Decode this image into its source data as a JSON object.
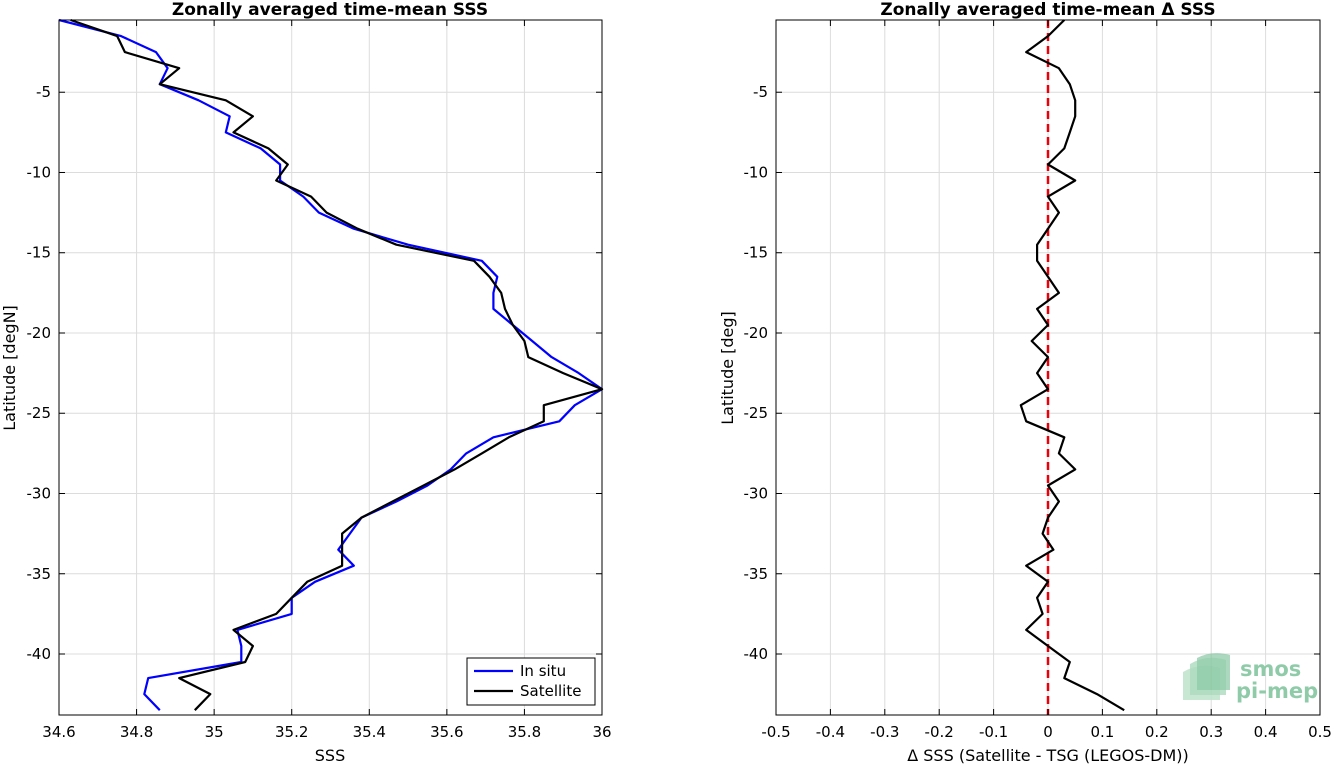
{
  "chart_data": [
    {
      "type": "line",
      "title": "Zonally averaged time-mean SSS",
      "xlabel": "SSS",
      "ylabel": "Latitude [degN]",
      "xlim": [
        34.6,
        36.0
      ],
      "ylim": [
        -43.8,
        -0.5
      ],
      "xticks": [
        "34.6",
        "34.8",
        "35",
        "35.2",
        "35.4",
        "35.6",
        "35.8",
        "36"
      ],
      "xtick_values": [
        34.6,
        34.8,
        35.0,
        35.2,
        35.4,
        35.6,
        35.8,
        36.0
      ],
      "yticks": [
        "-5",
        "-10",
        "-15",
        "-20",
        "-25",
        "-30",
        "-35",
        "-40"
      ],
      "ytick_values": [
        -5,
        -10,
        -15,
        -20,
        -25,
        -30,
        -35,
        -40
      ],
      "grid": true,
      "legend_position": "bottom-right",
      "series": [
        {
          "name": "In situ",
          "color": "#0000ff",
          "points": [
            [
              34.6,
              -0.5
            ],
            [
              34.76,
              -1.5
            ],
            [
              34.85,
              -2.5
            ],
            [
              34.88,
              -3.5
            ],
            [
              34.86,
              -4.5
            ],
            [
              34.96,
              -5.5
            ],
            [
              35.04,
              -6.5
            ],
            [
              35.03,
              -7.5
            ],
            [
              35.12,
              -8.5
            ],
            [
              35.17,
              -9.5
            ],
            [
              35.17,
              -10.5
            ],
            [
              35.23,
              -11.5
            ],
            [
              35.27,
              -12.5
            ],
            [
              35.36,
              -13.5
            ],
            [
              35.5,
              -14.5
            ],
            [
              35.69,
              -15.5
            ],
            [
              35.73,
              -16.5
            ],
            [
              35.72,
              -17.5
            ],
            [
              35.72,
              -18.5
            ],
            [
              35.77,
              -19.5
            ],
            [
              35.82,
              -20.5
            ],
            [
              35.87,
              -21.5
            ],
            [
              35.94,
              -22.5
            ],
            [
              36.0,
              -23.5
            ],
            [
              35.93,
              -24.5
            ],
            [
              35.89,
              -25.5
            ],
            [
              35.72,
              -26.5
            ],
            [
              35.65,
              -27.5
            ],
            [
              35.61,
              -28.5
            ],
            [
              35.55,
              -29.5
            ],
            [
              35.47,
              -30.5
            ],
            [
              35.38,
              -31.5
            ],
            [
              35.35,
              -32.5
            ],
            [
              35.32,
              -33.5
            ],
            [
              35.36,
              -34.5
            ],
            [
              35.26,
              -35.5
            ],
            [
              35.2,
              -36.5
            ],
            [
              35.2,
              -37.5
            ],
            [
              35.06,
              -38.5
            ],
            [
              35.07,
              -39.5
            ],
            [
              35.07,
              -40.5
            ],
            [
              34.83,
              -41.5
            ],
            [
              34.82,
              -42.5
            ],
            [
              34.86,
              -43.5
            ]
          ]
        },
        {
          "name": "Satellite",
          "color": "#000000",
          "points": [
            [
              34.63,
              -0.5
            ],
            [
              34.75,
              -1.5
            ],
            [
              34.77,
              -2.5
            ],
            [
              34.91,
              -3.5
            ],
            [
              34.86,
              -4.5
            ],
            [
              35.03,
              -5.5
            ],
            [
              35.1,
              -6.5
            ],
            [
              35.05,
              -7.5
            ],
            [
              35.14,
              -8.5
            ],
            [
              35.19,
              -9.5
            ],
            [
              35.16,
              -10.5
            ],
            [
              35.25,
              -11.5
            ],
            [
              35.29,
              -12.5
            ],
            [
              35.37,
              -13.5
            ],
            [
              35.47,
              -14.5
            ],
            [
              35.67,
              -15.5
            ],
            [
              35.71,
              -16.5
            ],
            [
              35.74,
              -17.5
            ],
            [
              35.75,
              -18.5
            ],
            [
              35.77,
              -19.5
            ],
            [
              35.8,
              -20.5
            ],
            [
              35.81,
              -21.5
            ],
            [
              35.9,
              -22.5
            ],
            [
              36.0,
              -23.5
            ],
            [
              35.85,
              -24.5
            ],
            [
              35.85,
              -25.5
            ],
            [
              35.76,
              -26.5
            ],
            [
              35.69,
              -27.5
            ],
            [
              35.62,
              -28.5
            ],
            [
              35.54,
              -29.5
            ],
            [
              35.46,
              -30.5
            ],
            [
              35.38,
              -31.5
            ],
            [
              35.33,
              -32.5
            ],
            [
              35.33,
              -33.5
            ],
            [
              35.33,
              -34.5
            ],
            [
              35.24,
              -35.5
            ],
            [
              35.2,
              -36.5
            ],
            [
              35.16,
              -37.5
            ],
            [
              35.05,
              -38.5
            ],
            [
              35.1,
              -39.5
            ],
            [
              35.08,
              -40.5
            ],
            [
              34.91,
              -41.5
            ],
            [
              34.99,
              -42.5
            ],
            [
              34.95,
              -43.5
            ]
          ]
        }
      ]
    },
    {
      "type": "line",
      "title": "Zonally averaged time-mean Δ SSS",
      "xlabel": "Δ SSS (Satellite - TSG (LEGOS-DM))",
      "ylabel": "Latitude [deg]",
      "xlim": [
        -0.5,
        0.5
      ],
      "ylim": [
        -43.8,
        -0.5
      ],
      "xticks": [
        "-0.5",
        "-0.4",
        "-0.3",
        "-0.2",
        "-0.1",
        "0",
        "0.1",
        "0.2",
        "0.3",
        "0.4",
        "0.5"
      ],
      "xtick_values": [
        -0.5,
        -0.4,
        -0.3,
        -0.2,
        -0.1,
        0,
        0.1,
        0.2,
        0.3,
        0.4,
        0.5
      ],
      "yticks": [
        "-5",
        "-10",
        "-15",
        "-20",
        "-25",
        "-30",
        "-35",
        "-40"
      ],
      "ytick_values": [
        -5,
        -10,
        -15,
        -20,
        -25,
        -30,
        -35,
        -40
      ],
      "grid": true,
      "zero_line": {
        "x": 0,
        "color": "#e8000b",
        "style": "dashed"
      },
      "series": [
        {
          "color": "#000000",
          "points": [
            [
              0.03,
              -0.5
            ],
            [
              0.0,
              -1.5
            ],
            [
              -0.04,
              -2.5
            ],
            [
              0.02,
              -3.5
            ],
            [
              0.04,
              -4.5
            ],
            [
              0.05,
              -5.5
            ],
            [
              0.05,
              -6.5
            ],
            [
              0.04,
              -7.5
            ],
            [
              0.03,
              -8.5
            ],
            [
              0.0,
              -9.5
            ],
            [
              0.05,
              -10.5
            ],
            [
              0.0,
              -11.5
            ],
            [
              0.02,
              -12.5
            ],
            [
              0.0,
              -13.5
            ],
            [
              -0.02,
              -14.5
            ],
            [
              -0.02,
              -15.5
            ],
            [
              0.0,
              -16.5
            ],
            [
              0.02,
              -17.5
            ],
            [
              -0.02,
              -18.5
            ],
            [
              0.0,
              -19.5
            ],
            [
              -0.03,
              -20.5
            ],
            [
              0.0,
              -21.5
            ],
            [
              -0.02,
              -22.5
            ],
            [
              0.0,
              -23.5
            ],
            [
              -0.05,
              -24.5
            ],
            [
              -0.04,
              -25.5
            ],
            [
              0.03,
              -26.5
            ],
            [
              0.02,
              -27.5
            ],
            [
              0.05,
              -28.5
            ],
            [
              0.0,
              -29.5
            ],
            [
              0.02,
              -30.5
            ],
            [
              0.0,
              -31.5
            ],
            [
              -0.01,
              -32.5
            ],
            [
              0.01,
              -33.5
            ],
            [
              -0.04,
              -34.5
            ],
            [
              0.0,
              -35.5
            ],
            [
              -0.02,
              -36.5
            ],
            [
              -0.01,
              -37.5
            ],
            [
              -0.04,
              -38.5
            ],
            [
              0.0,
              -39.5
            ],
            [
              0.04,
              -40.5
            ],
            [
              0.03,
              -41.5
            ],
            [
              0.09,
              -42.5
            ],
            [
              0.14,
              -43.5
            ]
          ]
        }
      ]
    }
  ],
  "logo": {
    "line1": "smos",
    "line2": "pi-mep",
    "color": "#7cc39a"
  }
}
